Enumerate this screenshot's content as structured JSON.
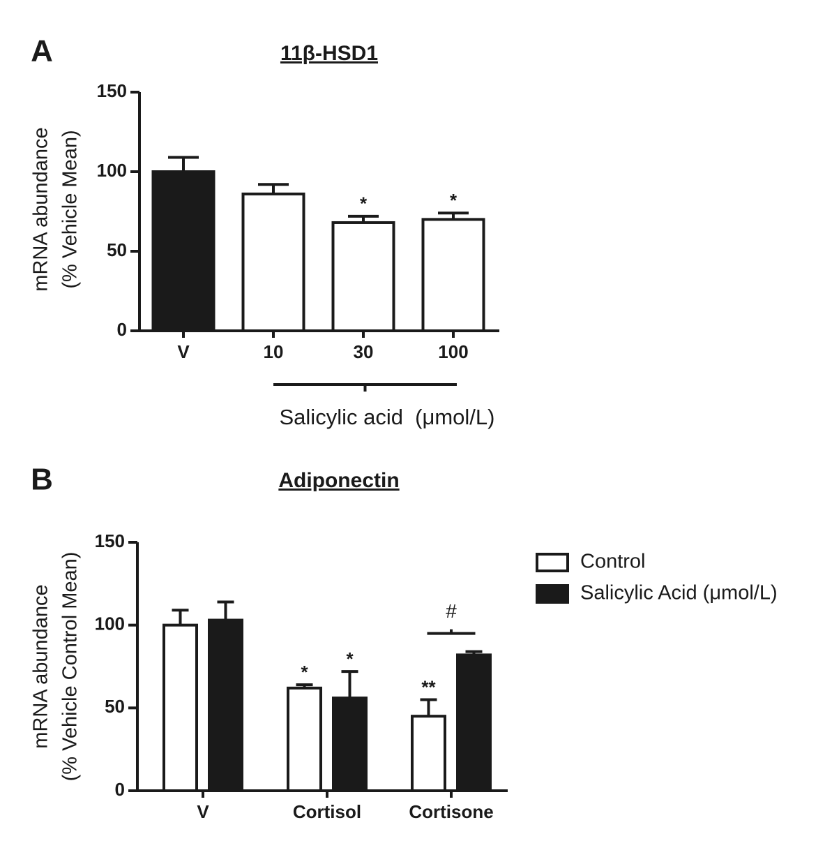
{
  "chart_data": [
    {
      "type": "bar",
      "panel_label": "A",
      "title": "11β-HSD1",
      "y_label": [
        "mRNA abundance",
        "(% Vehicle Mean)"
      ],
      "x_label": "Salicylic acid  (μmol/L)",
      "categories": [
        "V",
        "10",
        "30",
        "100"
      ],
      "values": [
        100,
        86,
        68,
        70
      ],
      "errors": [
        9,
        6,
        4,
        4
      ],
      "colors": [
        "#1a1a1a",
        "#ffffff",
        "#ffffff",
        "#ffffff"
      ],
      "annotations": [
        null,
        null,
        "*",
        "*"
      ],
      "ylim": [
        0,
        150
      ],
      "yticks": [
        0,
        50,
        100,
        150
      ]
    },
    {
      "type": "grouped-bar",
      "panel_label": "B",
      "title": "Adiponectin",
      "y_label": [
        "mRNA abundance",
        "(% Vehicle Control Mean)"
      ],
      "categories": [
        "V",
        "Cortisol",
        "Cortisone"
      ],
      "series": [
        {
          "name": "Control",
          "color": "#ffffff",
          "values": [
            100,
            62,
            45
          ],
          "errors": [
            9,
            2,
            10
          ],
          "annotations": [
            null,
            "*",
            "**"
          ]
        },
        {
          "name": "Salicylic Acid (μmol/L)",
          "color": "#1a1a1a",
          "values": [
            103,
            56,
            82
          ],
          "errors": [
            11,
            16,
            2
          ],
          "annotations": [
            null,
            "*",
            null
          ]
        }
      ],
      "group_annotations": [
        null,
        null,
        "#"
      ],
      "ylim": [
        0,
        150
      ],
      "yticks": [
        0,
        50,
        100,
        150
      ]
    }
  ]
}
